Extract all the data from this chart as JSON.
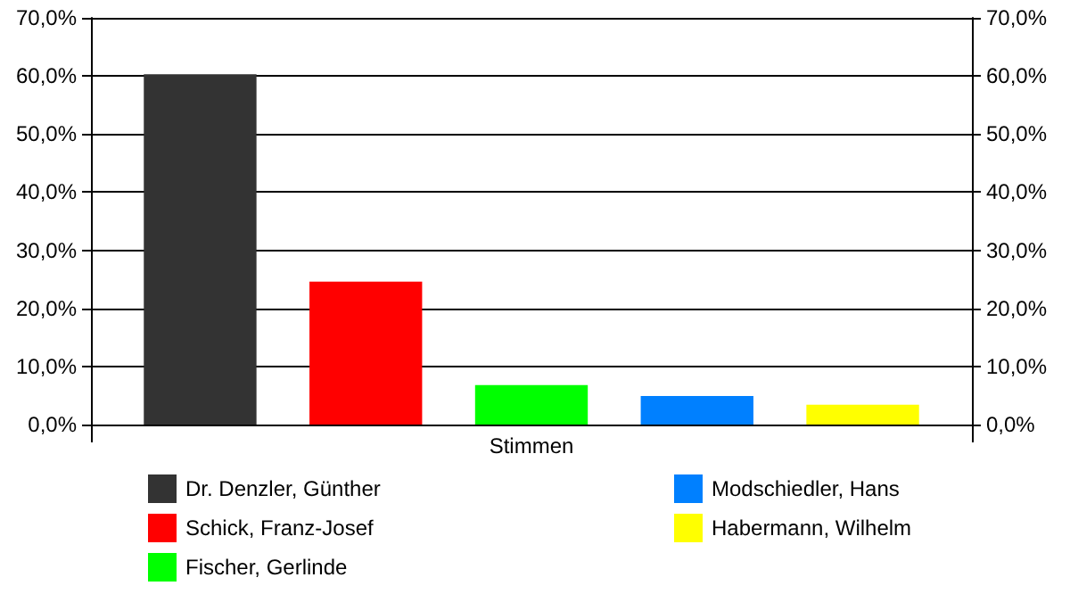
{
  "chart_data": {
    "type": "bar",
    "categories": [
      "Stimmen"
    ],
    "series": [
      {
        "name": "Dr. Denzler, Günther",
        "color": "#333333",
        "values": [
          60.3
        ]
      },
      {
        "name": "Schick, Franz-Josef",
        "color": "#ff0000",
        "values": [
          24.6
        ]
      },
      {
        "name": "Fischer, Gerlinde",
        "color": "#00ff00",
        "values": [
          6.8
        ]
      },
      {
        "name": "Modschiedler, Hans",
        "color": "#0080ff",
        "values": [
          4.9
        ]
      },
      {
        "name": "Habermann, Wilhelm",
        "color": "#ffff00",
        "values": [
          3.4
        ]
      }
    ],
    "ylim": [
      0,
      70
    ],
    "yticks": [
      {
        "value": 0,
        "label": "0,0%"
      },
      {
        "value": 10,
        "label": "10,0%"
      },
      {
        "value": 20,
        "label": "20,0%"
      },
      {
        "value": 30,
        "label": "30,0%"
      },
      {
        "value": 40,
        "label": "40,0%"
      },
      {
        "value": 50,
        "label": "50,0%"
      },
      {
        "value": 60,
        "label": "60,0%"
      },
      {
        "value": 70,
        "label": "70,0%"
      }
    ],
    "grid": "y",
    "legend": "bottom"
  }
}
